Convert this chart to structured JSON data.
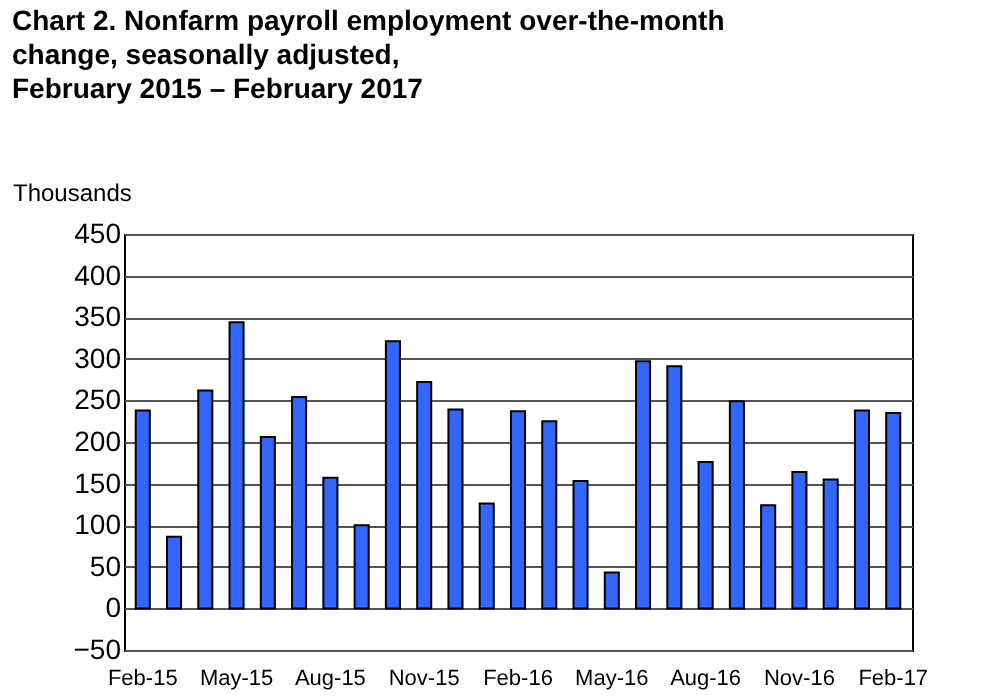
{
  "chart_data": {
    "type": "bar",
    "title": "Chart 2. Nonfarm payroll employment over-the-month\nchange, seasonally adjusted,\nFebruary 2015 – February 2017",
    "ylabel": "Thousands",
    "categories": [
      "Feb-15",
      null,
      null,
      "May-15",
      null,
      null,
      "Aug-15",
      null,
      null,
      "Nov-15",
      null,
      null,
      "Feb-16",
      null,
      null,
      "May-16",
      null,
      null,
      "Aug-16",
      null,
      null,
      "Nov-16",
      null,
      null,
      "Feb-17"
    ],
    "values": [
      238,
      86,
      262,
      344,
      206,
      254,
      157,
      100,
      321,
      272,
      239,
      126,
      237,
      225,
      153,
      43,
      297,
      291,
      176,
      249,
      124,
      164,
      155,
      238,
      235
    ],
    "color": "#3366ff",
    "ylim": [
      -50,
      450
    ],
    "yticks": [
      -50,
      0,
      50,
      100,
      150,
      200,
      250,
      300,
      350,
      400,
      450
    ],
    "grid": "y"
  }
}
